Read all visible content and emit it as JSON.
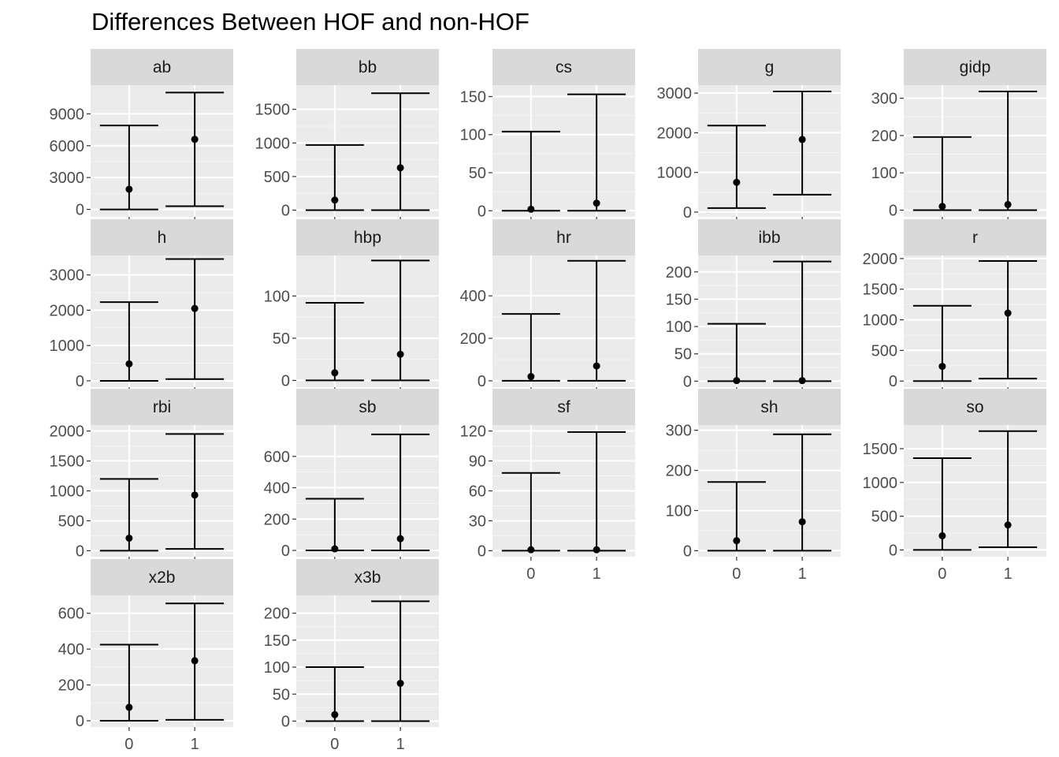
{
  "chart_data": {
    "title": "Differences Between HOF and non-HOF",
    "type": "pointrange",
    "categories": [
      "0",
      "1"
    ],
    "grid": true,
    "facets": [
      {
        "name": "ab",
        "yticks": [
          0,
          3000,
          6000,
          9000
        ],
        "ylim": [
          -700,
          11700
        ],
        "ranges": [
          {
            "x": "0",
            "min": 0,
            "mid": 1900,
            "max": 7900
          },
          {
            "x": "1",
            "min": 300,
            "mid": 6600,
            "max": 11000
          }
        ]
      },
      {
        "name": "bb",
        "yticks": [
          0,
          500,
          1000,
          1500
        ],
        "ylim": [
          -100,
          1860
        ],
        "ranges": [
          {
            "x": "0",
            "min": 0,
            "mid": 150,
            "max": 970
          },
          {
            "x": "1",
            "min": 0,
            "mid": 630,
            "max": 1740
          }
        ]
      },
      {
        "name": "cs",
        "yticks": [
          0,
          50,
          100,
          150
        ],
        "ylim": [
          -8,
          165
        ],
        "ranges": [
          {
            "x": "0",
            "min": 0,
            "mid": 2,
            "max": 104
          },
          {
            "x": "1",
            "min": 0,
            "mid": 10,
            "max": 153
          }
        ]
      },
      {
        "name": "g",
        "yticks": [
          0,
          1000,
          2000,
          3000
        ],
        "ylim": [
          -120,
          3200
        ],
        "ranges": [
          {
            "x": "0",
            "min": 100,
            "mid": 750,
            "max": 2180
          },
          {
            "x": "1",
            "min": 440,
            "mid": 1830,
            "max": 3040
          }
        ]
      },
      {
        "name": "gidp",
        "yticks": [
          0,
          100,
          200,
          300
        ],
        "ylim": [
          -18,
          335
        ],
        "ranges": [
          {
            "x": "0",
            "min": 0,
            "mid": 10,
            "max": 196
          },
          {
            "x": "1",
            "min": 0,
            "mid": 15,
            "max": 318
          }
        ]
      },
      {
        "name": "h",
        "yticks": [
          0,
          1000,
          2000,
          3000
        ],
        "ylim": [
          -180,
          3550
        ],
        "ranges": [
          {
            "x": "0",
            "min": 0,
            "mid": 480,
            "max": 2230
          },
          {
            "x": "1",
            "min": 50,
            "mid": 2050,
            "max": 3450
          }
        ]
      },
      {
        "name": "hbp",
        "yticks": [
          0,
          50,
          100
        ],
        "ylim": [
          -8,
          148
        ],
        "ranges": [
          {
            "x": "0",
            "min": 0,
            "mid": 9,
            "max": 92
          },
          {
            "x": "1",
            "min": 0,
            "mid": 31,
            "max": 142
          }
        ]
      },
      {
        "name": "hr",
        "yticks": [
          0,
          200,
          400
        ],
        "ylim": [
          -30,
          590
        ],
        "ranges": [
          {
            "x": "0",
            "min": 0,
            "mid": 20,
            "max": 315
          },
          {
            "x": "1",
            "min": 0,
            "mid": 70,
            "max": 565
          }
        ]
      },
      {
        "name": "ibb",
        "yticks": [
          0,
          50,
          100,
          150,
          200
        ],
        "ylim": [
          -11,
          230
        ],
        "ranges": [
          {
            "x": "0",
            "min": 0,
            "mid": 1,
            "max": 105
          },
          {
            "x": "1",
            "min": 0,
            "mid": 1,
            "max": 219
          }
        ]
      },
      {
        "name": "r",
        "yticks": [
          0,
          500,
          1000,
          1500,
          2000
        ],
        "ylim": [
          -100,
          2050
        ],
        "ranges": [
          {
            "x": "0",
            "min": 0,
            "mid": 240,
            "max": 1230
          },
          {
            "x": "1",
            "min": 40,
            "mid": 1110,
            "max": 1960
          }
        ]
      },
      {
        "name": "rbi",
        "yticks": [
          0,
          500,
          1000,
          1500,
          2000
        ],
        "ylim": [
          -100,
          2100
        ],
        "ranges": [
          {
            "x": "0",
            "min": 0,
            "mid": 210,
            "max": 1200
          },
          {
            "x": "1",
            "min": 30,
            "mid": 930,
            "max": 1950
          }
        ]
      },
      {
        "name": "sb",
        "yticks": [
          0,
          200,
          400,
          600
        ],
        "ylim": [
          -40,
          800
        ],
        "ranges": [
          {
            "x": "0",
            "min": 0,
            "mid": 10,
            "max": 330
          },
          {
            "x": "1",
            "min": 0,
            "mid": 75,
            "max": 740
          }
        ]
      },
      {
        "name": "sf",
        "yticks": [
          0,
          30,
          60,
          90,
          120
        ],
        "ylim": [
          -6,
          126
        ],
        "ranges": [
          {
            "x": "0",
            "min": 0,
            "mid": 1,
            "max": 78
          },
          {
            "x": "1",
            "min": 0,
            "mid": 1,
            "max": 119
          }
        ]
      },
      {
        "name": "sh",
        "yticks": [
          0,
          100,
          200,
          300
        ],
        "ylim": [
          -15,
          313
        ],
        "ranges": [
          {
            "x": "0",
            "min": 0,
            "mid": 25,
            "max": 171
          },
          {
            "x": "1",
            "min": 0,
            "mid": 72,
            "max": 290
          }
        ]
      },
      {
        "name": "so",
        "yticks": [
          0,
          500,
          1000,
          1500
        ],
        "ylim": [
          -100,
          1850
        ],
        "ranges": [
          {
            "x": "0",
            "min": 0,
            "mid": 210,
            "max": 1360
          },
          {
            "x": "1",
            "min": 40,
            "mid": 370,
            "max": 1760
          }
        ]
      },
      {
        "name": "x2b",
        "yticks": [
          0,
          200,
          400,
          600
        ],
        "ylim": [
          -35,
          700
        ],
        "ranges": [
          {
            "x": "0",
            "min": 0,
            "mid": 75,
            "max": 425
          },
          {
            "x": "1",
            "min": 5,
            "mid": 335,
            "max": 655
          }
        ]
      },
      {
        "name": "x3b",
        "yticks": [
          0,
          50,
          100,
          150,
          200
        ],
        "ylim": [
          -11,
          233
        ],
        "ranges": [
          {
            "x": "0",
            "min": 0,
            "mid": 12,
            "max": 100
          },
          {
            "x": "1",
            "min": 0,
            "mid": 70,
            "max": 222
          }
        ]
      }
    ]
  }
}
